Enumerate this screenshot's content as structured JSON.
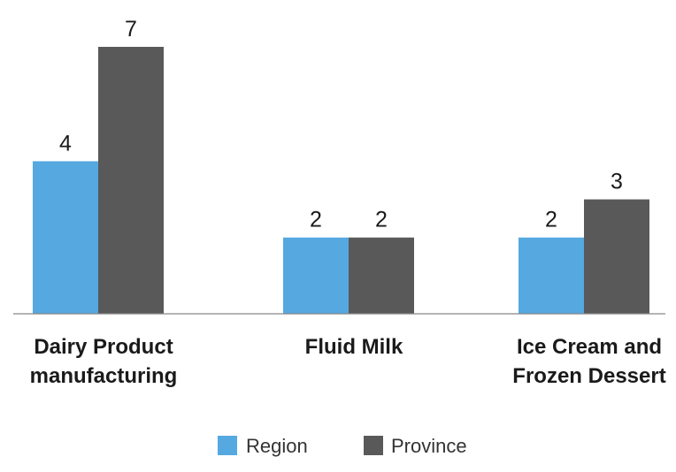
{
  "chart_data": {
    "type": "bar",
    "categories": [
      [
        "Dairy Product",
        "manufacturing"
      ],
      [
        "Fluid Milk"
      ],
      [
        "Ice Cream and",
        "Frozen Dessert"
      ]
    ],
    "series": [
      {
        "name": "Region",
        "values": [
          4,
          2,
          2
        ],
        "color": "#55a8e0"
      },
      {
        "name": "Province",
        "values": [
          7,
          2,
          3
        ],
        "color": "#595959"
      }
    ],
    "ylim": [
      0,
      7
    ],
    "grid": false,
    "legend_position": "bottom"
  }
}
